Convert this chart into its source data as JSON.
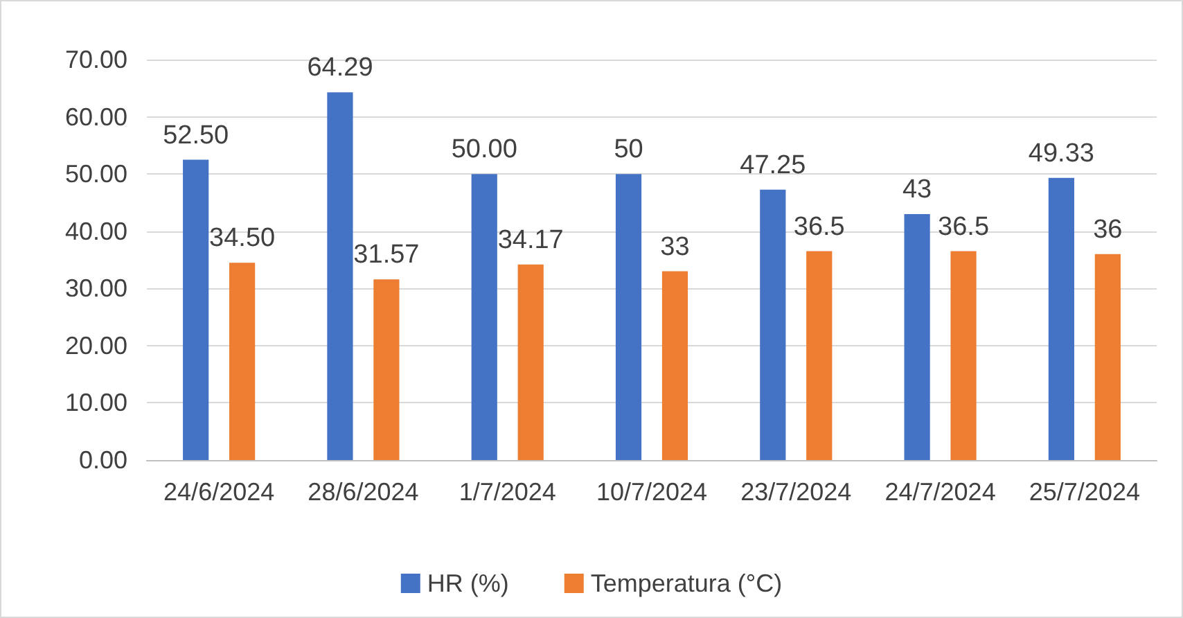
{
  "chart_data": {
    "type": "bar",
    "categories": [
      "24/6/2024",
      "28/6/2024",
      "1/7/2024",
      "10/7/2024",
      "23/7/2024",
      "24/7/2024",
      "25/7/2024"
    ],
    "series": [
      {
        "name": "HR (%)",
        "color": "#4472c4",
        "values": [
          52.5,
          64.29,
          50,
          50,
          47.25,
          43,
          49.33
        ],
        "value_labels": [
          "52.50",
          "64.29",
          "50.00",
          "50",
          "47.25",
          "43",
          "49.33"
        ]
      },
      {
        "name": "Temperatura (°C)",
        "color": "#ed7d31",
        "values": [
          34.5,
          31.57,
          34.17,
          33,
          36.5,
          36.5,
          36
        ],
        "value_labels": [
          "34.50",
          "31.57",
          "34.17",
          "33",
          "36.5",
          "36.5",
          "36"
        ]
      }
    ],
    "ylim": [
      0,
      70
    ],
    "yticks": [
      {
        "value": 0,
        "label": "0.00"
      },
      {
        "value": 10,
        "label": "10.00"
      },
      {
        "value": 20,
        "label": "20.00"
      },
      {
        "value": 30,
        "label": "30.00"
      },
      {
        "value": 40,
        "label": "40.00"
      },
      {
        "value": 50,
        "label": "50.00"
      },
      {
        "value": 60,
        "label": "60.00"
      },
      {
        "value": 70,
        "label": "70.00"
      }
    ],
    "grid": "y",
    "legend": "bottom"
  }
}
